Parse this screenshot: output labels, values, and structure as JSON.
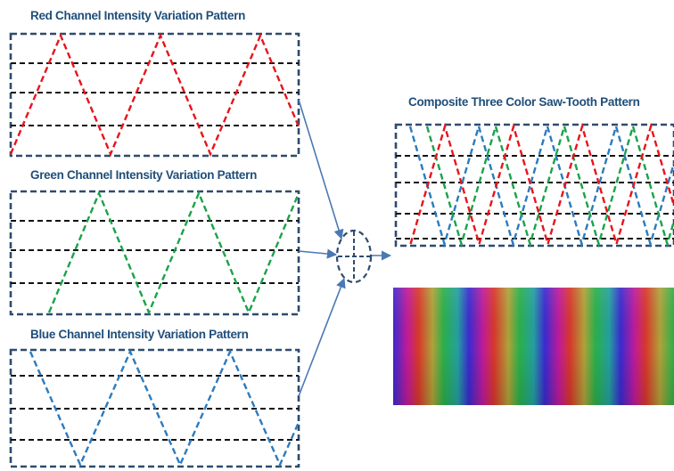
{
  "titles": {
    "red": "Red Channel Intensity Variation Pattern",
    "green": "Green Channel Intensity Variation Pattern",
    "blue": "Blue Channel Intensity Variation Pattern",
    "composite": "Composite Three Color Saw-Tooth Pattern"
  },
  "colors": {
    "red": "#e8141c",
    "green": "#1aa34a",
    "blue": "#2b7bbf",
    "box_border": "#2f4b6e",
    "grid_lines": "#111111",
    "arrows": "#4a78b5",
    "title_text": "#1f4e79"
  },
  "combiner_icon": "plus-in-dashed-circle-icon"
}
